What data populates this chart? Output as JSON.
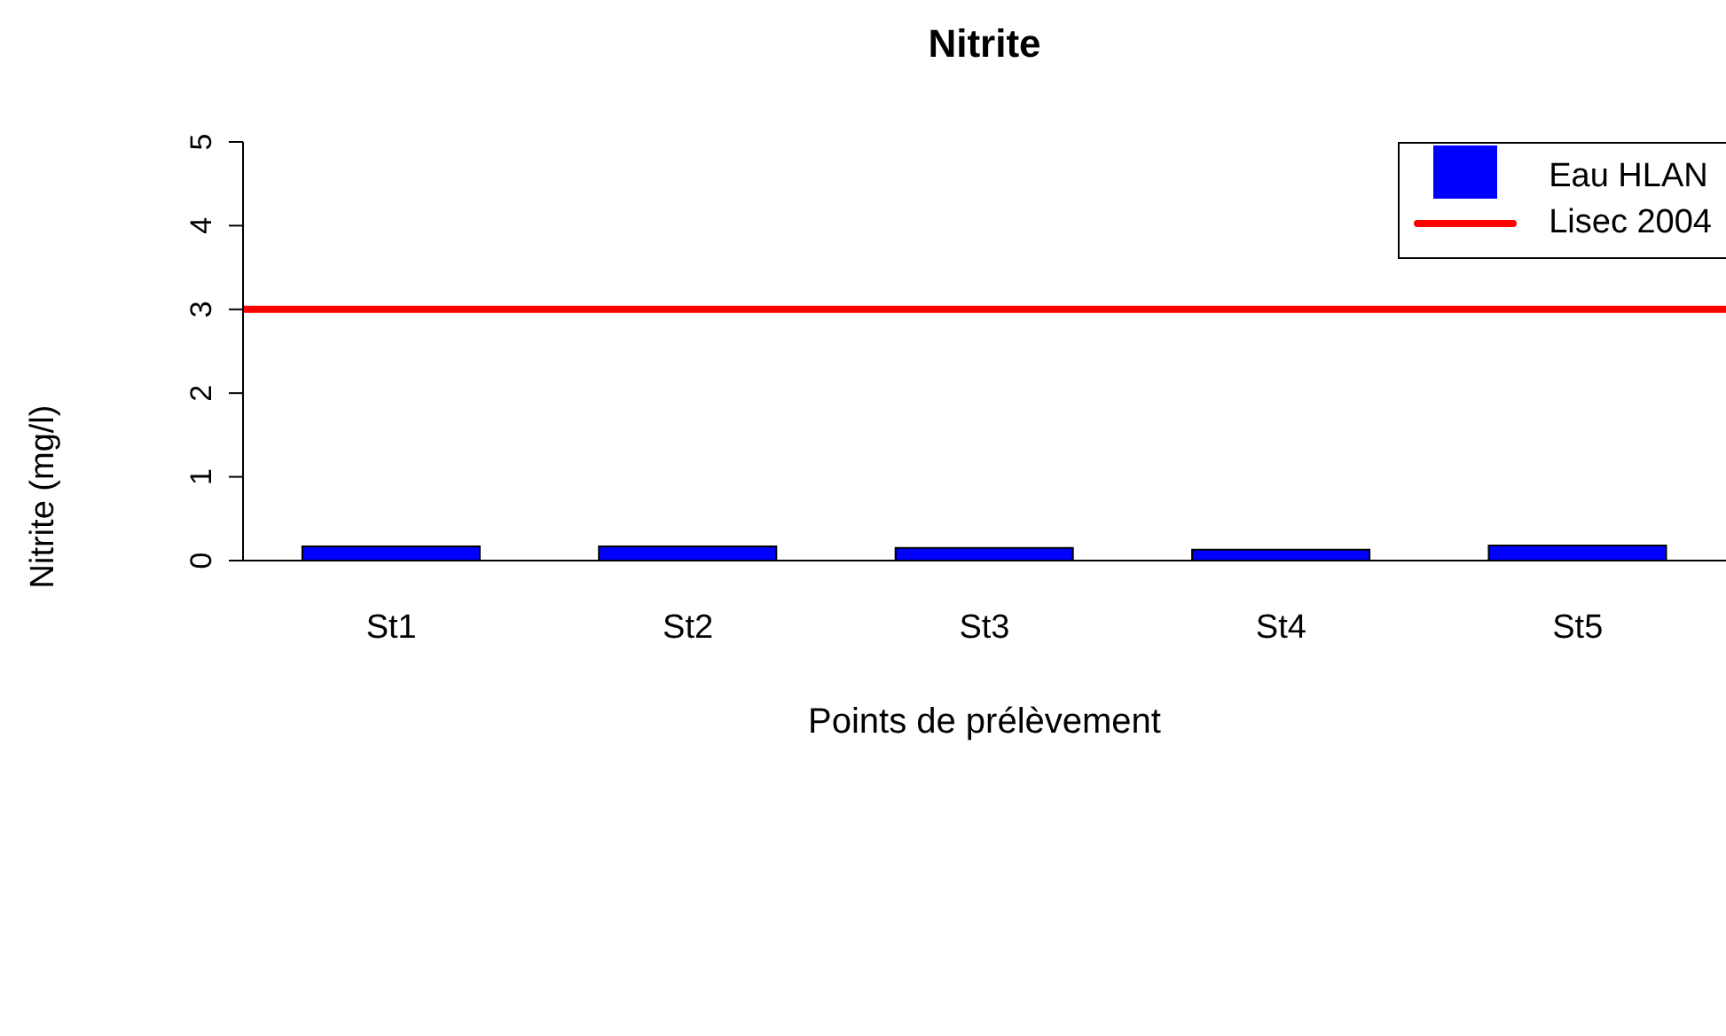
{
  "chart_data": {
    "type": "bar",
    "title": "Nitrite",
    "xlabel": "Points de prélèvement",
    "ylabel": "Nitrite (mg/l)",
    "categories": [
      "St1",
      "St2",
      "St3",
      "St4",
      "St5"
    ],
    "series": [
      {
        "name": "Eau HLAN",
        "color": "#0000ff",
        "values": [
          0.17,
          0.17,
          0.15,
          0.13,
          0.18
        ]
      }
    ],
    "ylim": [
      0,
      5
    ],
    "yticks": [
      0,
      1,
      2,
      3,
      4,
      5
    ],
    "ref_lines": [
      {
        "axis": "y",
        "value": 3,
        "label": "Lisec 2004",
        "color": "#ff0000"
      }
    ],
    "legend": "top right",
    "grid": false
  }
}
